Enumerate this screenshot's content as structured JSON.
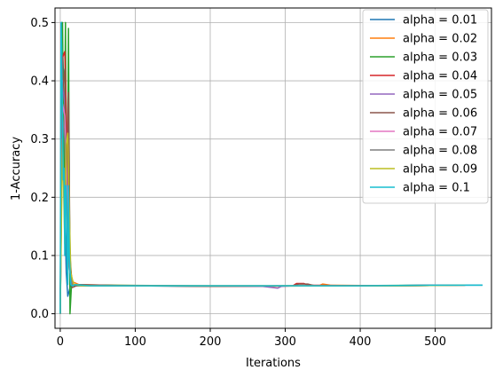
{
  "chart_data": {
    "type": "line",
    "title": "",
    "xlabel": "Iterations",
    "ylabel": "1-Accuracy",
    "xlim": [
      -7,
      575
    ],
    "ylim": [
      -0.025,
      0.525
    ],
    "xticks": [
      0,
      100,
      200,
      300,
      400,
      500
    ],
    "yticks": [
      0.0,
      0.1,
      0.2,
      0.3,
      0.4,
      0.5
    ],
    "ytick_labels": [
      "0.0",
      "0.1",
      "0.2",
      "0.3",
      "0.4",
      "0.5"
    ],
    "grid": true,
    "legend": "top-right",
    "series": [
      {
        "name": "alpha = 0.01",
        "color": "#1f77b4",
        "x": [
          0,
          2,
          4,
          6,
          8,
          10,
          14,
          20,
          40,
          100,
          200,
          300,
          400,
          500,
          563
        ],
        "y": [
          0.0,
          0.5,
          0.42,
          0.18,
          0.07,
          0.03,
          0.05,
          0.048,
          0.049,
          0.048,
          0.047,
          0.048,
          0.048,
          0.049,
          0.049
        ]
      },
      {
        "name": "alpha = 0.02",
        "color": "#ff7f0e",
        "x": [
          0,
          2,
          5,
          8,
          12,
          16,
          25,
          60,
          150,
          250,
          345,
          350,
          360,
          450,
          530
        ],
        "y": [
          0.0,
          0.47,
          0.36,
          0.2,
          0.09,
          0.055,
          0.05,
          0.049,
          0.048,
          0.047,
          0.048,
          0.051,
          0.049,
          0.048,
          0.049
        ]
      },
      {
        "name": "alpha = 0.03",
        "color": "#2ca02c",
        "x": [
          0,
          3,
          5,
          7,
          9,
          11,
          13,
          15,
          20,
          60,
          200,
          350,
          500
        ],
        "y": [
          0.0,
          0.5,
          0.2,
          0.5,
          0.1,
          0.49,
          0.0,
          0.05,
          0.048,
          0.049,
          0.048,
          0.048,
          0.049
        ]
      },
      {
        "name": "alpha = 0.04",
        "color": "#d62728",
        "x": [
          0,
          3,
          6,
          9,
          12,
          16,
          30,
          120,
          250,
          310,
          315,
          325,
          330,
          420,
          520
        ],
        "y": [
          0.0,
          0.44,
          0.45,
          0.3,
          0.1,
          0.05,
          0.048,
          0.048,
          0.047,
          0.048,
          0.052,
          0.052,
          0.049,
          0.048,
          0.049
        ]
      },
      {
        "name": "alpha = 0.05",
        "color": "#9467bd",
        "x": [
          0,
          3,
          6,
          9,
          13,
          18,
          40,
          150,
          270,
          290,
          295,
          310,
          400,
          510
        ],
        "y": [
          0.0,
          0.4,
          0.36,
          0.2,
          0.07,
          0.049,
          0.048,
          0.048,
          0.047,
          0.044,
          0.047,
          0.048,
          0.048,
          0.049
        ]
      },
      {
        "name": "alpha = 0.06",
        "color": "#8c564b",
        "x": [
          0,
          3,
          6,
          9,
          11,
          13,
          16,
          25,
          100,
          200,
          310,
          318,
          330,
          340,
          450,
          540
        ],
        "y": [
          0.0,
          0.38,
          0.42,
          0.2,
          0.38,
          0.1,
          0.045,
          0.05,
          0.048,
          0.047,
          0.048,
          0.051,
          0.051,
          0.048,
          0.048,
          0.049
        ]
      },
      {
        "name": "alpha = 0.07",
        "color": "#e377c2",
        "x": [
          0,
          3,
          6,
          9,
          12,
          16,
          30,
          150,
          300,
          450,
          540
        ],
        "y": [
          0.0,
          0.36,
          0.34,
          0.22,
          0.08,
          0.05,
          0.048,
          0.048,
          0.048,
          0.048,
          0.049
        ]
      },
      {
        "name": "alpha = 0.08",
        "color": "#7f7f7f",
        "x": [
          0,
          3,
          6,
          9,
          12,
          16,
          30,
          150,
          300,
          450,
          540
        ],
        "y": [
          0.0,
          0.34,
          0.3,
          0.18,
          0.08,
          0.05,
          0.048,
          0.048,
          0.048,
          0.048,
          0.049
        ]
      },
      {
        "name": "alpha = 0.09",
        "color": "#bcbd22",
        "x": [
          0,
          3,
          6,
          8,
          10,
          12,
          14,
          18,
          30,
          150,
          300,
          450,
          540
        ],
        "y": [
          0.0,
          0.3,
          0.12,
          0.29,
          0.31,
          0.18,
          0.07,
          0.05,
          0.048,
          0.048,
          0.048,
          0.048,
          0.049
        ]
      },
      {
        "name": "alpha = 0.1",
        "color": "#17becf",
        "x": [
          0,
          1,
          2,
          3,
          4,
          5,
          6,
          7,
          8,
          9,
          10,
          11,
          12,
          14,
          16,
          20,
          40,
          100,
          200,
          300,
          400,
          500,
          563
        ],
        "y": [
          0.0,
          0.5,
          0.45,
          0.33,
          0.23,
          0.25,
          0.1,
          0.22,
          0.22,
          0.1,
          0.05,
          0.22,
          0.1,
          0.05,
          0.048,
          0.05,
          0.048,
          0.048,
          0.048,
          0.048,
          0.048,
          0.049,
          0.049
        ]
      }
    ]
  }
}
